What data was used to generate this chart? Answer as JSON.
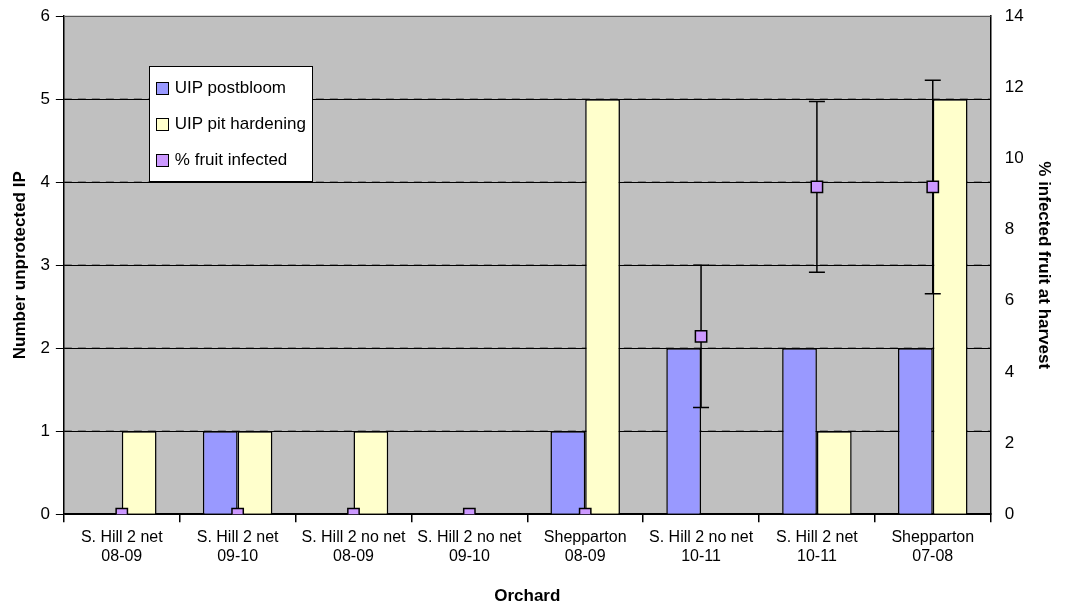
{
  "chart_data": {
    "type": "bar",
    "xlabel": "Orchard",
    "ylabel": "Number unprotected IP",
    "y2label": "% infected fruit at harvest",
    "categories": [
      "S. Hill 2 net 08-09",
      "S. Hill 2 net 09-10",
      "S. Hill 2 no net 08-09",
      "S. Hill 2 no net 09-10",
      "Shepparton 08-09",
      "S. Hill 2 no net 10-11",
      "S. Hill 2 net 10-11",
      "Shepparton 07-08"
    ],
    "series": [
      {
        "name": "UIP postbloom",
        "color": "#9999ff",
        "values": [
          0,
          1,
          0,
          0,
          1,
          2,
          2,
          2
        ]
      },
      {
        "name": "UIP pit hardening",
        "color": "#ffffcc",
        "values": [
          1,
          1,
          1,
          0,
          5,
          0,
          1,
          5
        ]
      },
      {
        "name": "% fruit infected",
        "type": "scatter",
        "axis": "y2",
        "color": "#cc99ff",
        "values": [
          0,
          0,
          0,
          0,
          0,
          5,
          9.2,
          9.2
        ],
        "errors": [
          null,
          null,
          null,
          null,
          null,
          2,
          2.4,
          3
        ]
      }
    ],
    "ylim": [
      0,
      6
    ],
    "yticks": [
      0,
      1,
      2,
      3,
      4,
      5,
      6
    ],
    "y2lim": [
      0,
      14
    ],
    "y2ticks": [
      0,
      2,
      4,
      6,
      8,
      10,
      12,
      14
    ],
    "grid": "y",
    "legend": "top left",
    "marker": "square"
  }
}
